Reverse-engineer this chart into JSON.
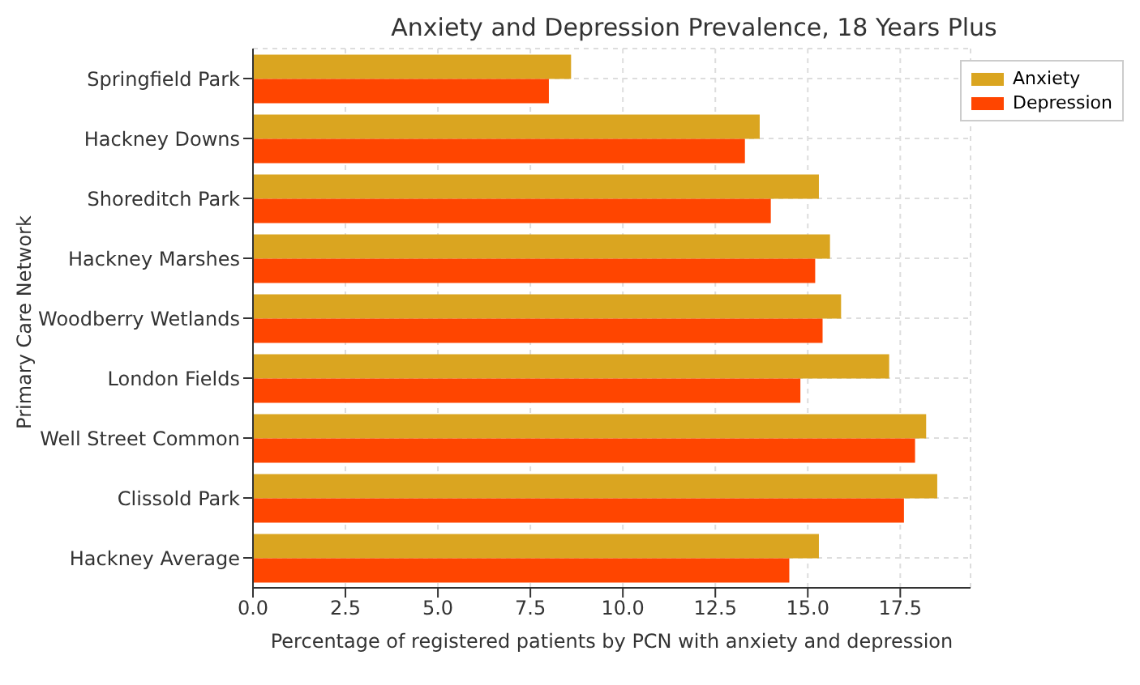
{
  "chart_data": {
    "type": "bar",
    "orientation": "horizontal",
    "title": "Anxiety and Depression Prevalence, 18 Years Plus",
    "xlabel": "Percentage of registered patients by PCN with anxiety and depression",
    "ylabel": "Primary Care Network",
    "categories": [
      "Springfield Park",
      "Hackney Downs",
      "Shoreditch Park",
      "Hackney Marshes",
      "Woodberry Wetlands",
      "London Fields",
      "Well Street Common",
      "Clissold Park",
      "Hackney Average"
    ],
    "series": [
      {
        "name": "Anxiety",
        "color": "#daa520",
        "values": [
          8.6,
          13.7,
          15.3,
          15.6,
          15.9,
          17.2,
          18.2,
          18.5,
          15.3
        ]
      },
      {
        "name": "Depression",
        "color": "#ff4500",
        "values": [
          8.0,
          13.3,
          14.0,
          15.2,
          15.4,
          14.8,
          17.9,
          17.6,
          14.5
        ]
      }
    ],
    "xlim": [
      0,
      19.4
    ],
    "xticks": [
      {
        "value": 0,
        "label": "0.0"
      },
      {
        "value": 2.5,
        "label": "2.5"
      },
      {
        "value": 5,
        "label": "5.0"
      },
      {
        "value": 7.5,
        "label": "7.5"
      },
      {
        "value": 10,
        "label": "10.0"
      },
      {
        "value": 12.5,
        "label": "12.5"
      },
      {
        "value": 15,
        "label": "15.0"
      },
      {
        "value": 17.5,
        "label": "17.5"
      }
    ],
    "grid": true,
    "legend": "top right"
  }
}
